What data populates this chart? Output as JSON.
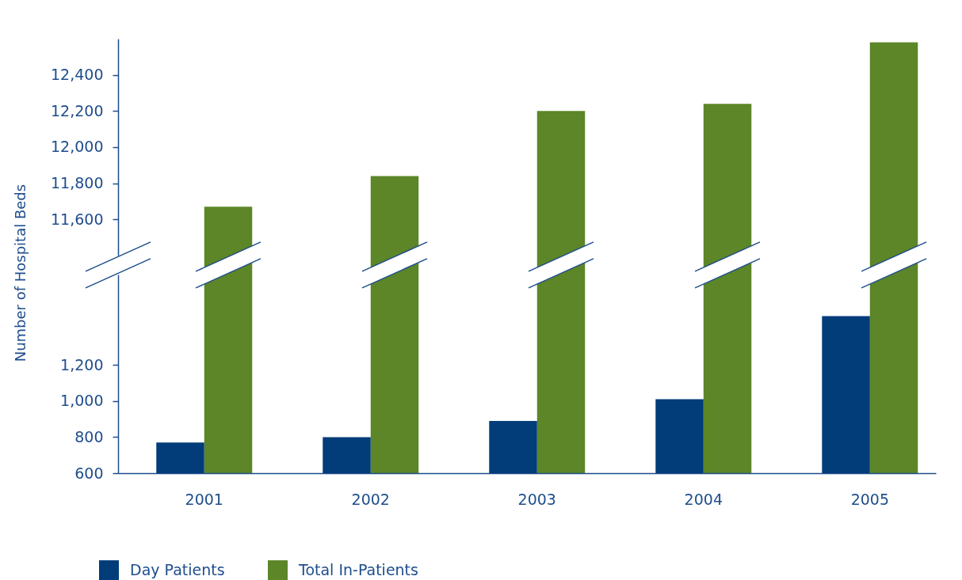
{
  "chart_data": [
    {
      "type": "bar",
      "categories": [
        "2001",
        "2002",
        "2003",
        "2004",
        "2005"
      ],
      "tick_labels": "y",
      "series": [
        {
          "color": "#023c79",
          "values": [
            null,
            null,
            null,
            null,
            null
          ]
        },
        {
          "color": "#5c8627",
          "values": [
            11670,
            11840,
            12200,
            12240,
            12580
          ]
        }
      ],
      "ylim": [
        11400,
        12600
      ],
      "yticks": [
        {
          "value": 11600,
          "label": "11,600"
        },
        {
          "value": 11800,
          "label": "11,800"
        },
        {
          "value": 12000,
          "label": "12,000"
        },
        {
          "value": 12200,
          "label": "12,200"
        },
        {
          "value": 12400,
          "label": "12,400"
        }
      ]
    },
    {
      "type": "bar",
      "ylabel": "Number of Hospital Beds",
      "categories": [
        "2001",
        "2002",
        "2003",
        "2004",
        "2005"
      ],
      "series": [
        {
          "name": "Day Patients",
          "color": "#023c79",
          "values": [
            770,
            800,
            890,
            1010,
            1470
          ]
        },
        {
          "name": "Total In-Patients",
          "color": "#5c8627",
          "values": [
            null,
            null,
            null,
            null,
            null
          ]
        }
      ],
      "ylim": [
        600,
        1700
      ],
      "yticks": [
        600,
        800,
        {
          "value": 1000,
          "label": "1,000"
        },
        {
          "value": 1200,
          "label": "1,200"
        }
      ],
      "legend": "bottom left"
    }
  ]
}
